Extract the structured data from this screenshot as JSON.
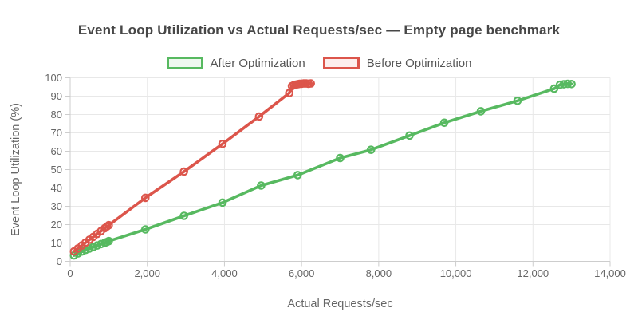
{
  "chart_data": {
    "type": "line",
    "title": "Event Loop Utilization vs Actual Requests/sec — Empty page benchmark",
    "xlabel": "Actual Requests/sec",
    "ylabel": "Event Loop Utilization (%)",
    "xlim": [
      0,
      14000
    ],
    "ylim": [
      0,
      100
    ],
    "grid": true,
    "legend_position": "top",
    "marker": "open-circle",
    "colors": {
      "grid": "#e8e8e8",
      "axis": "#cdcdcd",
      "tick_text": "#666666",
      "axis_title_text": "#666666"
    },
    "x_ticks": [
      {
        "value": 0,
        "label": "0"
      },
      {
        "value": 2000,
        "label": "2,000"
      },
      {
        "value": 4000,
        "label": "4,000"
      },
      {
        "value": 6000,
        "label": "6,000"
      },
      {
        "value": 8000,
        "label": "8,000"
      },
      {
        "value": 10000,
        "label": "10,000"
      },
      {
        "value": 12000,
        "label": "12,000"
      },
      {
        "value": 14000,
        "label": "14,000"
      }
    ],
    "y_ticks": [
      {
        "value": 0,
        "label": "0"
      },
      {
        "value": 10,
        "label": "10"
      },
      {
        "value": 20,
        "label": "20"
      },
      {
        "value": 30,
        "label": "30"
      },
      {
        "value": 40,
        "label": "40"
      },
      {
        "value": 50,
        "label": "50"
      },
      {
        "value": 60,
        "label": "60"
      },
      {
        "value": 70,
        "label": "70"
      },
      {
        "value": 80,
        "label": "80"
      },
      {
        "value": 90,
        "label": "90"
      },
      {
        "value": 100,
        "label": "100"
      }
    ],
    "series": [
      {
        "name": "After Optimization",
        "color": "#57b960",
        "legend_fill": "#eef8ef",
        "points": [
          [
            100,
            3.2
          ],
          [
            200,
            4.3
          ],
          [
            300,
            5.3
          ],
          [
            400,
            6.2
          ],
          [
            500,
            7.0
          ],
          [
            600,
            7.8
          ],
          [
            700,
            8.6
          ],
          [
            800,
            9.4
          ],
          [
            900,
            10.1
          ],
          [
            950,
            10.5
          ],
          [
            1000,
            11.0
          ],
          [
            1950,
            17.4
          ],
          [
            2950,
            24.8
          ],
          [
            3950,
            32.0
          ],
          [
            4950,
            41.3
          ],
          [
            5900,
            47.0
          ],
          [
            7000,
            56.3
          ],
          [
            7800,
            60.8
          ],
          [
            8800,
            68.5
          ],
          [
            9700,
            75.5
          ],
          [
            10650,
            81.8
          ],
          [
            11600,
            87.5
          ],
          [
            12550,
            94.1
          ],
          [
            12700,
            96.2
          ],
          [
            12800,
            96.5
          ],
          [
            12900,
            96.7
          ],
          [
            13000,
            96.6
          ]
        ]
      },
      {
        "name": "Before Optimization",
        "color": "#dc554b",
        "legend_fill": "#fdeeed",
        "points": [
          [
            100,
            5.4
          ],
          [
            200,
            7.0
          ],
          [
            300,
            8.6
          ],
          [
            400,
            10.2
          ],
          [
            500,
            11.8
          ],
          [
            600,
            13.3
          ],
          [
            700,
            14.9
          ],
          [
            800,
            16.5
          ],
          [
            900,
            18.1
          ],
          [
            950,
            18.9
          ],
          [
            1000,
            19.7
          ],
          [
            1950,
            34.6
          ],
          [
            2950,
            48.9
          ],
          [
            3950,
            64.0
          ],
          [
            4900,
            78.9
          ],
          [
            5680,
            91.7
          ],
          [
            5750,
            95.5
          ],
          [
            5800,
            96.0
          ],
          [
            5850,
            96.3
          ],
          [
            5900,
            96.5
          ],
          [
            5950,
            96.7
          ],
          [
            6000,
            96.8
          ],
          [
            6060,
            96.9
          ],
          [
            6120,
            96.9
          ],
          [
            6180,
            96.8
          ],
          [
            6240,
            96.9
          ]
        ]
      }
    ]
  }
}
